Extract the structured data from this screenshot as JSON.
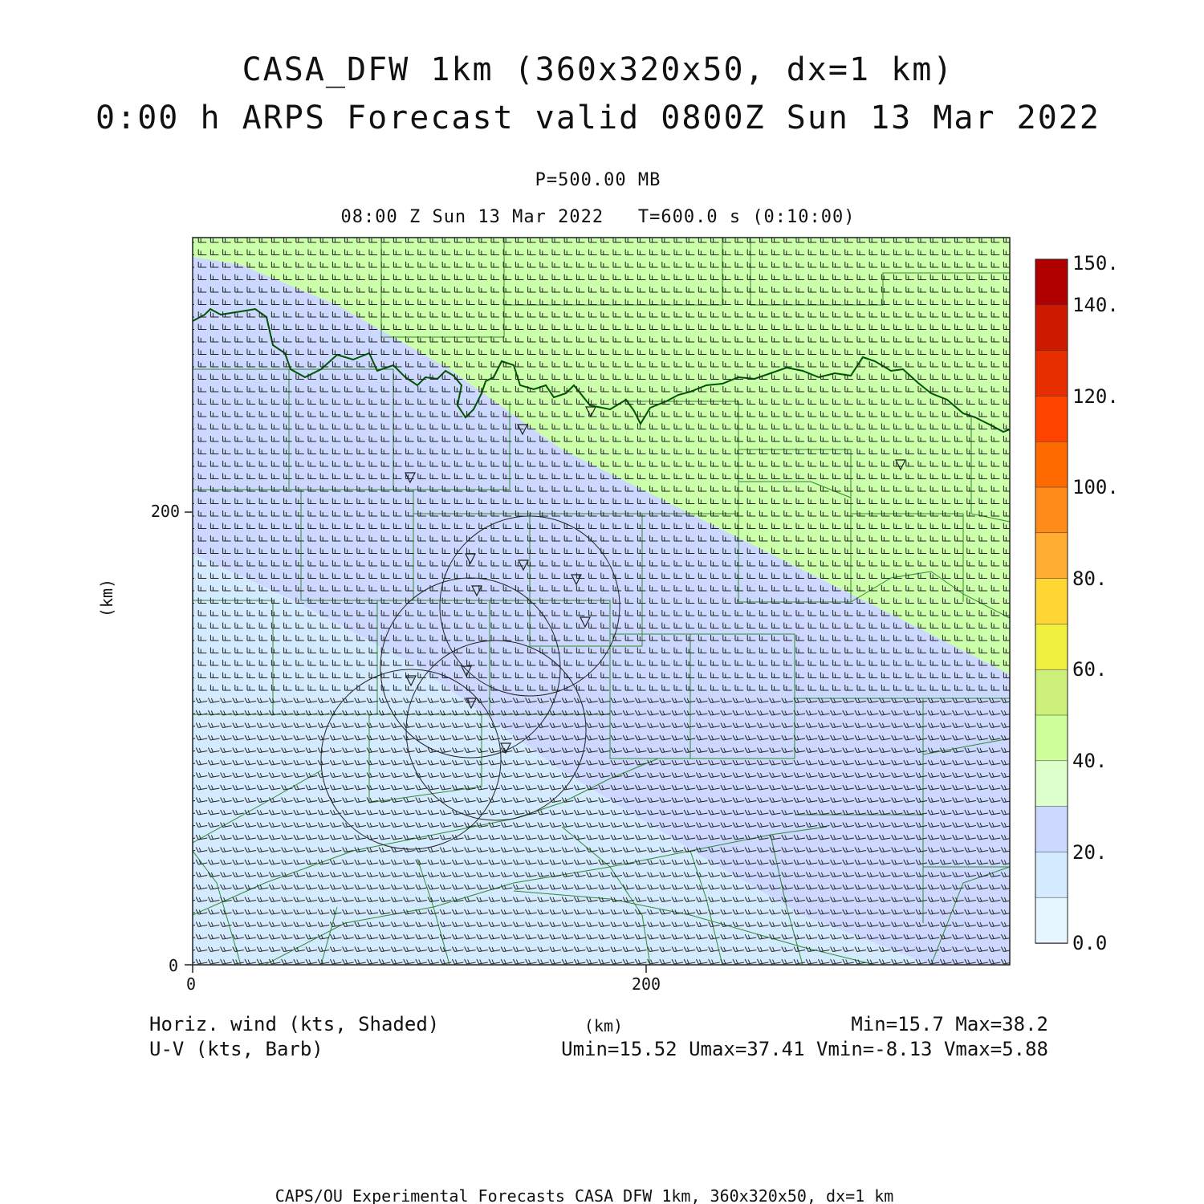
{
  "title": {
    "line1": "CASA_DFW 1km (360x320x50, dx=1 km)",
    "line2": "0:00 h ARPS Forecast valid 0800Z Sun 13 Mar 2022"
  },
  "subtitle": {
    "level": "P=500.00 MB",
    "valid_time": "08:00 Z Sun 13 Mar 2022   T=600.0 s (0:10:00)"
  },
  "axes": {
    "x_label": "(km)",
    "y_label": "(km)",
    "x_ticks": [
      "0",
      "200"
    ],
    "y_ticks": [
      "0",
      "200"
    ]
  },
  "colorbar": {
    "labels": [
      "150.",
      "140.",
      "120.",
      "100.",
      "80.",
      "60.",
      "40.",
      "20.",
      "0.0"
    ],
    "colors": [
      "#b00000",
      "#cc1a00",
      "#e62e00",
      "#ff4400",
      "#ff6a00",
      "#ff8c1a",
      "#ffad33",
      "#ffd633",
      "#f0f040",
      "#ccf07a",
      "#ccff99",
      "#dcffcc",
      "#ccd8ff",
      "#d4ebff",
      "#e6f6ff"
    ]
  },
  "legend": {
    "field1": "Horiz. wind (kts, Shaded)",
    "field2": "U-V (kts, Barb)",
    "units": "(km)",
    "minmax": "Min=15.7 Max=38.2",
    "uv_minmax": "Umin=15.52 Umax=37.41 Vmin=-8.13 Vmax=5.88"
  },
  "footer": "CAPS/OU Experimental Forecasts  CASA DFW 1km, 360x320x50, dx=1 km",
  "map": {
    "shading_colors": {
      "band_20_30": "#ccd8ff",
      "band_10_20": "#d4ebff",
      "band_30_40": "#ccffaa"
    },
    "boundary_color": "#2e8b2e",
    "river_color": "#005500"
  }
}
